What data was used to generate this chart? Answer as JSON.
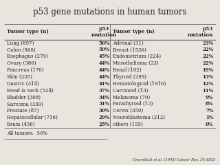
{
  "title": "p53 gene mutations in human tumors",
  "left_data": [
    [
      "Lung (897)",
      "56%"
    ],
    [
      "Colon (960)",
      "50%"
    ],
    [
      "Esophagus (279)",
      "45%"
    ],
    [
      "Ovary (386)",
      "44%"
    ],
    [
      "Pancreas (170)",
      "44%"
    ],
    [
      "Skin (220)",
      "44%"
    ],
    [
      "Gastric (314)",
      "41%"
    ],
    [
      "Head & neck (524)",
      "37%"
    ],
    [
      "Bladder (308)",
      "34%"
    ],
    [
      "Sarcoma (339)",
      "31%"
    ],
    [
      "Prostate (87)",
      "30%"
    ],
    [
      "Hepatocellular (716)",
      "29%"
    ],
    [
      "Brain (456)",
      "25%"
    ]
  ],
  "right_data": [
    [
      "Adrenal (31)",
      "23%"
    ],
    [
      "Breast (1536)",
      "22%"
    ],
    [
      "Endometrium (224)",
      "22%"
    ],
    [
      "Mesothelioma (23)",
      "22%"
    ],
    [
      "Renal (102)",
      "19%"
    ],
    [
      "Thyroid (299)",
      "13%"
    ],
    [
      "Hematological (1916)",
      "12%"
    ],
    [
      "Carcinoid (13)",
      "11%"
    ],
    [
      "Melanoma (70)",
      "9%"
    ],
    [
      "Parathyroid (13)",
      "8%"
    ],
    [
      "Cervix (350)",
      "7%"
    ],
    [
      "Neuroblastoma (212)",
      "1%"
    ],
    [
      "others (155)",
      "0%"
    ]
  ],
  "footer": "All tumors:  50%",
  "citation": "Greenblatt et al. (1995) Cancer Res. 54:4855",
  "bg_color": "#e8e4de",
  "title_fontsize": 8.5,
  "body_fontsize": 5.0,
  "header_fontsize": 5.2
}
